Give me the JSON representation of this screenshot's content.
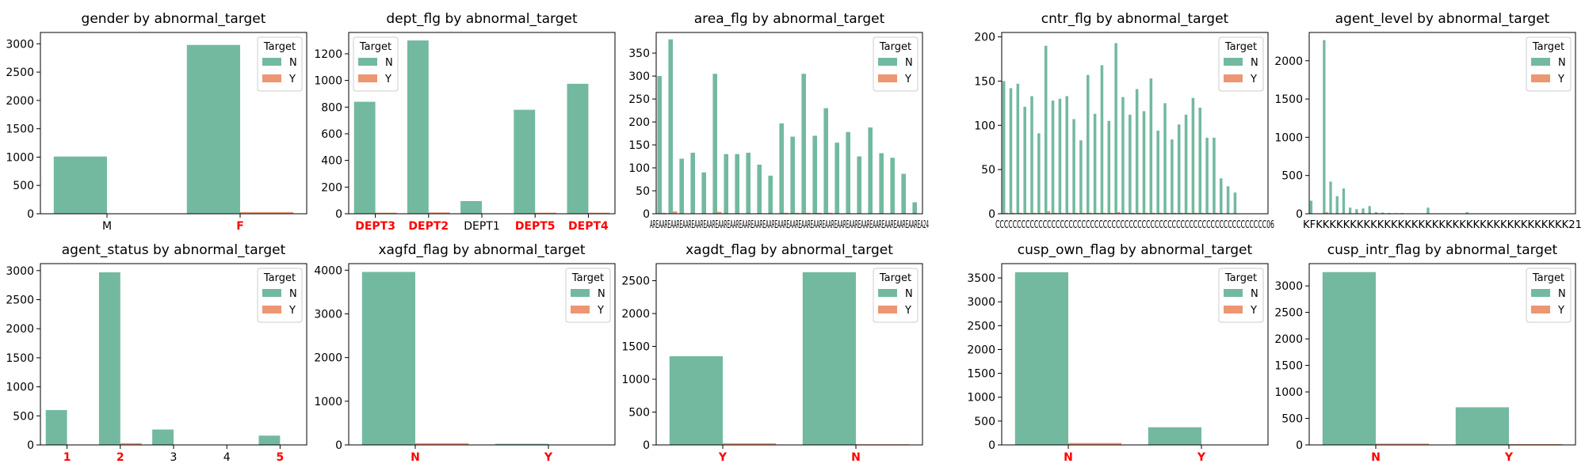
{
  "colors": {
    "N": "#73b9a0",
    "Y": "#ec9673",
    "highlight": "#ff0000",
    "text": "#000000"
  },
  "chart_data": [
    {
      "type": "bar",
      "title": "gender by abnormal_target",
      "categories": [
        "M",
        "F"
      ],
      "highlighted": [
        "F"
      ],
      "ylim": [
        0,
        3200
      ],
      "yticks": [
        0,
        500,
        1000,
        1500,
        2000,
        2500,
        3000
      ],
      "legend": {
        "title": "Target",
        "entries": [
          "N",
          "Y"
        ],
        "position": "top-right"
      },
      "series": [
        {
          "name": "N",
          "values": [
            1010,
            2980
          ]
        },
        {
          "name": "Y",
          "values": [
            5,
            30
          ]
        }
      ]
    },
    {
      "type": "bar",
      "title": "dept_flg by abnormal_target",
      "categories": [
        "DEPT3",
        "DEPT2",
        "DEPT1",
        "DEPT5",
        "DEPT4"
      ],
      "highlighted": [
        "DEPT3",
        "DEPT2",
        "DEPT5",
        "DEPT4"
      ],
      "ylim": [
        0,
        1360
      ],
      "yticks": [
        0,
        200,
        400,
        600,
        800,
        1000,
        1200
      ],
      "legend": {
        "title": "Target",
        "entries": [
          "N",
          "Y"
        ],
        "position": "top-left"
      },
      "series": [
        {
          "name": "N",
          "values": [
            840,
            1300,
            95,
            780,
            975
          ]
        },
        {
          "name": "Y",
          "values": [
            8,
            10,
            0,
            8,
            8
          ]
        }
      ]
    },
    {
      "type": "bar",
      "title": "area_flg by abnormal_target",
      "categories": [
        "AREA",
        "AREA",
        "AREA",
        "AREA",
        "AREA",
        "AREA",
        "AREA",
        "AREA",
        "AREA",
        "AREA",
        "AREA",
        "AREA",
        "AREA",
        "AREA",
        "AREA",
        "AREA",
        "AREA",
        "AREA",
        "AREA",
        "AREA",
        "AREA",
        "AREA",
        "AREA",
        "AREA24"
      ],
      "tick_text": "AREAAREAAREAAREAAREAAREAAREAAREAAREAAREAAREAAREAAREAAREAAREAAREAAREAAREAAREAAREAAREAAREAAREA24",
      "ylim": [
        0,
        395
      ],
      "yticks": [
        0,
        50,
        100,
        150,
        200,
        250,
        300,
        350
      ],
      "legend": {
        "title": "Target",
        "entries": [
          "N",
          "Y"
        ],
        "position": "top-right"
      },
      "series": [
        {
          "name": "N",
          "values": [
            300,
            380,
            120,
            133,
            90,
            305,
            130,
            130,
            133,
            107,
            83,
            197,
            168,
            305,
            170,
            230,
            155,
            178,
            125,
            188,
            132,
            122,
            87,
            25
          ]
        },
        {
          "name": "Y",
          "values": [
            2,
            5,
            1,
            1,
            1,
            4,
            1,
            1,
            1,
            1,
            1,
            2,
            2,
            2,
            2,
            2,
            1,
            1,
            1,
            1,
            1,
            1,
            1,
            0
          ]
        }
      ]
    },
    {
      "type": "bar",
      "title": "cntr_flg by abnormal_target",
      "categories": [
        "C",
        "C",
        "C",
        "C",
        "C",
        "C",
        "C",
        "C",
        "C",
        "C",
        "C",
        "C",
        "C",
        "C",
        "C",
        "C",
        "C",
        "C",
        "C",
        "C",
        "C",
        "C",
        "C",
        "C",
        "C",
        "C",
        "C",
        "C",
        "C",
        "C",
        "C",
        "C",
        "C",
        "C",
        "C",
        "C",
        "C",
        "C"
      ],
      "tick_text": "CCCCCCCCCCCCCCCCCCCCCCCCCCCCCCCCCCCCCCCCCCCCCCCCCCCCCCCCCCCCCCC06",
      "ylim": [
        0,
        205
      ],
      "yticks": [
        0,
        50,
        100,
        150,
        200
      ],
      "legend": {
        "title": "Target",
        "entries": [
          "N",
          "Y"
        ],
        "position": "top-right"
      },
      "series": [
        {
          "name": "N",
          "values": [
            150,
            142,
            147,
            121,
            133,
            91,
            190,
            128,
            130,
            133,
            107,
            83,
            157,
            113,
            168,
            105,
            193,
            132,
            112,
            141,
            116,
            153,
            94,
            125,
            84,
            101,
            112,
            131,
            120,
            86,
            86,
            40,
            31,
            24,
            0,
            0,
            0,
            0
          ]
        },
        {
          "name": "Y",
          "values": [
            1,
            1,
            1,
            1,
            1,
            1,
            3,
            1,
            1,
            1,
            1,
            1,
            1,
            1,
            1,
            1,
            2,
            1,
            1,
            1,
            1,
            1,
            1,
            1,
            1,
            1,
            1,
            1,
            1,
            1,
            1,
            0,
            0,
            0,
            0,
            0,
            0,
            0
          ]
        }
      ]
    },
    {
      "type": "bar",
      "title": "agent_level by abnormal_target",
      "categories": [
        "K",
        "K",
        "K",
        "K",
        "K",
        "K",
        "K",
        "K",
        "K",
        "K",
        "K",
        "K",
        "K",
        "K",
        "K",
        "K",
        "K",
        "K",
        "K",
        "K",
        "K",
        "K",
        "K",
        "K",
        "K",
        "K",
        "K",
        "K",
        "K",
        "K",
        "K",
        "K",
        "K",
        "K",
        "K",
        "K",
        "K",
        "K",
        "K",
        "K",
        "K"
      ],
      "tick_text": "KFKKKKKKKKKKKKKKKKKKKKKKKKKKKKKKKKKKKKK21",
      "ylim": [
        0,
        2370
      ],
      "yticks": [
        0,
        500,
        1000,
        1500,
        2000
      ],
      "legend": {
        "title": "Target",
        "entries": [
          "N",
          "Y"
        ],
        "position": "top-right"
      },
      "series": [
        {
          "name": "N",
          "values": [
            170,
            0,
            2270,
            420,
            230,
            330,
            80,
            60,
            70,
            100,
            20,
            15,
            10,
            8,
            10,
            6,
            5,
            5,
            80,
            5,
            4,
            4,
            3,
            3,
            20,
            3,
            2,
            2,
            2,
            2,
            2,
            2,
            1,
            1,
            1,
            1,
            1,
            1,
            1,
            1,
            1
          ]
        },
        {
          "name": "Y",
          "values": [
            2,
            0,
            20,
            5,
            3,
            4,
            1,
            1,
            1,
            1,
            0,
            0,
            0,
            0,
            0,
            0,
            0,
            0,
            1,
            0,
            0,
            0,
            0,
            0,
            0,
            0,
            0,
            0,
            0,
            0,
            0,
            0,
            0,
            0,
            0,
            0,
            0,
            0,
            0,
            0,
            0
          ]
        }
      ]
    },
    {
      "type": "bar",
      "title": "agent_status by abnormal_target",
      "categories": [
        "1",
        "2",
        "3",
        "4",
        "5"
      ],
      "highlighted": [
        "1",
        "2",
        "5"
      ],
      "ylim": [
        0,
        3120
      ],
      "yticks": [
        0,
        500,
        1000,
        1500,
        2000,
        2500,
        3000
      ],
      "legend": {
        "title": "Target",
        "entries": [
          "N",
          "Y"
        ],
        "position": "top-right"
      },
      "series": [
        {
          "name": "N",
          "values": [
            600,
            2970,
            265,
            3,
            160
          ]
        },
        {
          "name": "Y",
          "values": [
            5,
            30,
            2,
            0,
            2
          ]
        }
      ]
    },
    {
      "type": "bar",
      "title": "xagfd_flag by abnormal_target",
      "categories": [
        "N",
        "Y"
      ],
      "highlighted": [
        "N",
        "Y"
      ],
      "ylim": [
        0,
        4150
      ],
      "yticks": [
        0,
        1000,
        2000,
        3000,
        4000
      ],
      "legend": {
        "title": "Target",
        "entries": [
          "N",
          "Y"
        ],
        "position": "top-right"
      },
      "series": [
        {
          "name": "N",
          "values": [
            3960,
            25
          ]
        },
        {
          "name": "Y",
          "values": [
            40,
            2
          ]
        }
      ]
    },
    {
      "type": "bar",
      "title": "xagdt_flag by abnormal_target",
      "categories": [
        "Y",
        "N"
      ],
      "highlighted": [
        "Y",
        "N"
      ],
      "ylim": [
        0,
        2760
      ],
      "yticks": [
        0,
        500,
        1000,
        1500,
        2000,
        2500
      ],
      "legend": {
        "title": "Target",
        "entries": [
          "N",
          "Y"
        ],
        "position": "top-right"
      },
      "series": [
        {
          "name": "N",
          "values": [
            1350,
            2630
          ]
        },
        {
          "name": "Y",
          "values": [
            25,
            10
          ]
        }
      ]
    },
    {
      "type": "bar",
      "title": "cusp_own_flag by abnormal_target",
      "categories": [
        "N",
        "Y"
      ],
      "highlighted": [
        "N",
        "Y"
      ],
      "ylim": [
        0,
        3800
      ],
      "yticks": [
        0,
        500,
        1000,
        1500,
        2000,
        2500,
        3000,
        3500
      ],
      "legend": {
        "title": "Target",
        "entries": [
          "N",
          "Y"
        ],
        "position": "top-right"
      },
      "series": [
        {
          "name": "N",
          "values": [
            3620,
            370
          ]
        },
        {
          "name": "Y",
          "values": [
            40,
            5
          ]
        }
      ]
    },
    {
      "type": "bar",
      "title": "cusp_intr_flag by abnormal_target",
      "categories": [
        "N",
        "Y"
      ],
      "highlighted": [
        "N",
        "Y"
      ],
      "ylim": [
        0,
        3420
      ],
      "yticks": [
        0,
        500,
        1000,
        1500,
        2000,
        2500,
        3000
      ],
      "legend": {
        "title": "Target",
        "entries": [
          "N",
          "Y"
        ],
        "position": "top-right"
      },
      "series": [
        {
          "name": "N",
          "values": [
            3260,
            710
          ]
        },
        {
          "name": "Y",
          "values": [
            25,
            15
          ]
        }
      ]
    }
  ]
}
